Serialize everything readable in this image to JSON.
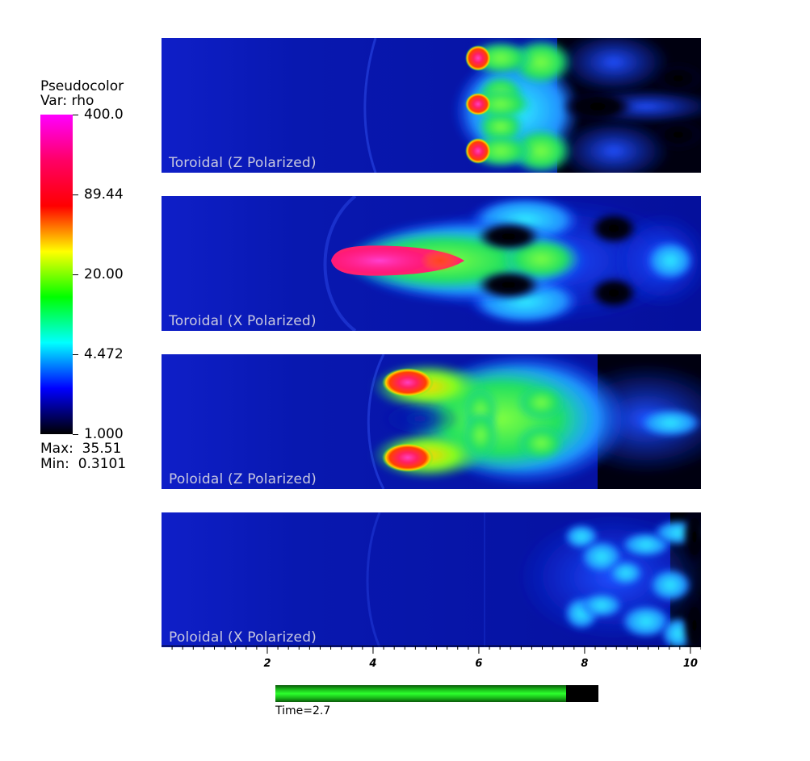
{
  "chart_data": {
    "type": "heatmap",
    "legend": {
      "title_line1": "Pseudocolor",
      "title_line2": "Var: rho",
      "scale": "log",
      "range": [
        1.0,
        400.0
      ],
      "tick_labels": [
        "400.0",
        "89.44",
        "20.00",
        "4.472",
        "1.000"
      ],
      "max_label": "Max:  35.51",
      "min_label": "Min:  0.3101",
      "colormap": [
        "#ff00ff",
        "#ff0066",
        "#ff0000",
        "#ffff00",
        "#00ff00",
        "#00ffff",
        "#0000ff",
        "#000000"
      ]
    },
    "panels": [
      {
        "label": "Toroidal (Z Polarized)",
        "pattern": "toroidal-z"
      },
      {
        "label": "Toroidal (X Polarized)",
        "pattern": "toroidal-x"
      },
      {
        "label": "Poloidal (Z Polarized)",
        "pattern": "poloidal-z"
      },
      {
        "label": "Poloidal (X Polarized)",
        "pattern": "poloidal-x"
      }
    ],
    "xaxis": {
      "range": [
        0,
        10.2
      ],
      "ticks": [
        2,
        4,
        6,
        8,
        10
      ],
      "tick_labels": [
        "2",
        "4",
        "6",
        "8",
        "10"
      ],
      "minor_step": 0.2
    },
    "time": {
      "label": "Time=2.7",
      "progress": 0.9
    }
  }
}
